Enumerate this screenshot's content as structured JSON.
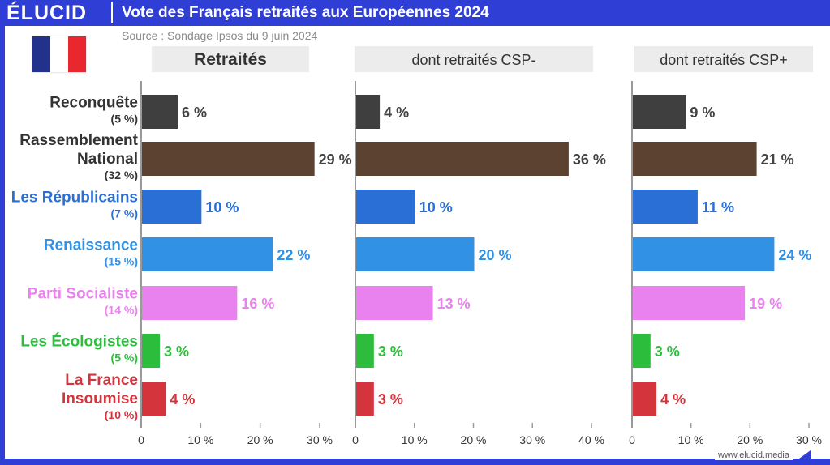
{
  "header": {
    "brand": "ÉLUCID",
    "title": "Vote des Français retraités aux Européennes 2024",
    "source": "Source : Sondage Ipsos du 9 juin 2024"
  },
  "footer": {
    "url": "www.elucid.media"
  },
  "colors": {
    "brand_blue": "#2f3fd6",
    "panel_header_bg": "#ececec",
    "axis": "#9a9a9a"
  },
  "chart_data": {
    "type": "bar",
    "orientation": "horizontal",
    "categories": [
      {
        "name": "Reconquête",
        "lines": [
          "Reconquête"
        ],
        "previous": "(5 %)",
        "color": "#3f3f3f"
      },
      {
        "name": "Rassemblement National",
        "lines": [
          "Rassemblement",
          "National"
        ],
        "previous": "(32 %)",
        "color": "#5b4231"
      },
      {
        "name": "Les Républicains",
        "lines": [
          "Les Républicains"
        ],
        "previous": "(7 %)",
        "color": "#2a6fd6"
      },
      {
        "name": "Renaissance",
        "lines": [
          "Renaissance"
        ],
        "previous": "(15 %)",
        "color": "#3191e4"
      },
      {
        "name": "Parti Socialiste",
        "lines": [
          "Parti Socialiste"
        ],
        "previous": "(14 %)",
        "color": "#e982ee"
      },
      {
        "name": "Les Écologistes",
        "lines": [
          "Les Écologistes"
        ],
        "previous": "(5 %)",
        "color": "#2cbd3c"
      },
      {
        "name": "La France Insoumise",
        "lines": [
          "La France",
          "Insoumise"
        ],
        "previous": "(10 %)",
        "color": "#d4343c"
      }
    ],
    "series": [
      {
        "name": "Retraités",
        "values": [
          6,
          29,
          10,
          22,
          16,
          3,
          4
        ],
        "labels": [
          "6 %",
          "29 %",
          "10 %",
          "22 %",
          "16 %",
          "3 %",
          "4 %"
        ],
        "xlim": [
          0,
          30
        ],
        "ticks": [
          "0",
          "10 %",
          "20 %",
          "30 %"
        ]
      },
      {
        "name": "dont retraités CSP-",
        "values": [
          4,
          36,
          10,
          20,
          13,
          3,
          3
        ],
        "labels": [
          "4 %",
          "36 %",
          "10 %",
          "20 %",
          "13 %",
          "3 %",
          "3 %"
        ],
        "xlim": [
          0,
          40
        ],
        "ticks": [
          "0",
          "10 %",
          "20 %",
          "30 %",
          "40 %"
        ]
      },
      {
        "name": "dont retraités CSP+",
        "values": [
          9,
          21,
          11,
          24,
          19,
          3,
          4
        ],
        "labels": [
          "9 %",
          "21 %",
          "11 %",
          "24 %",
          "19 %",
          "3 %",
          "4 %"
        ],
        "xlim": [
          0,
          30
        ],
        "ticks": [
          "0",
          "10 %",
          "20 %",
          "30 %"
        ]
      }
    ]
  }
}
